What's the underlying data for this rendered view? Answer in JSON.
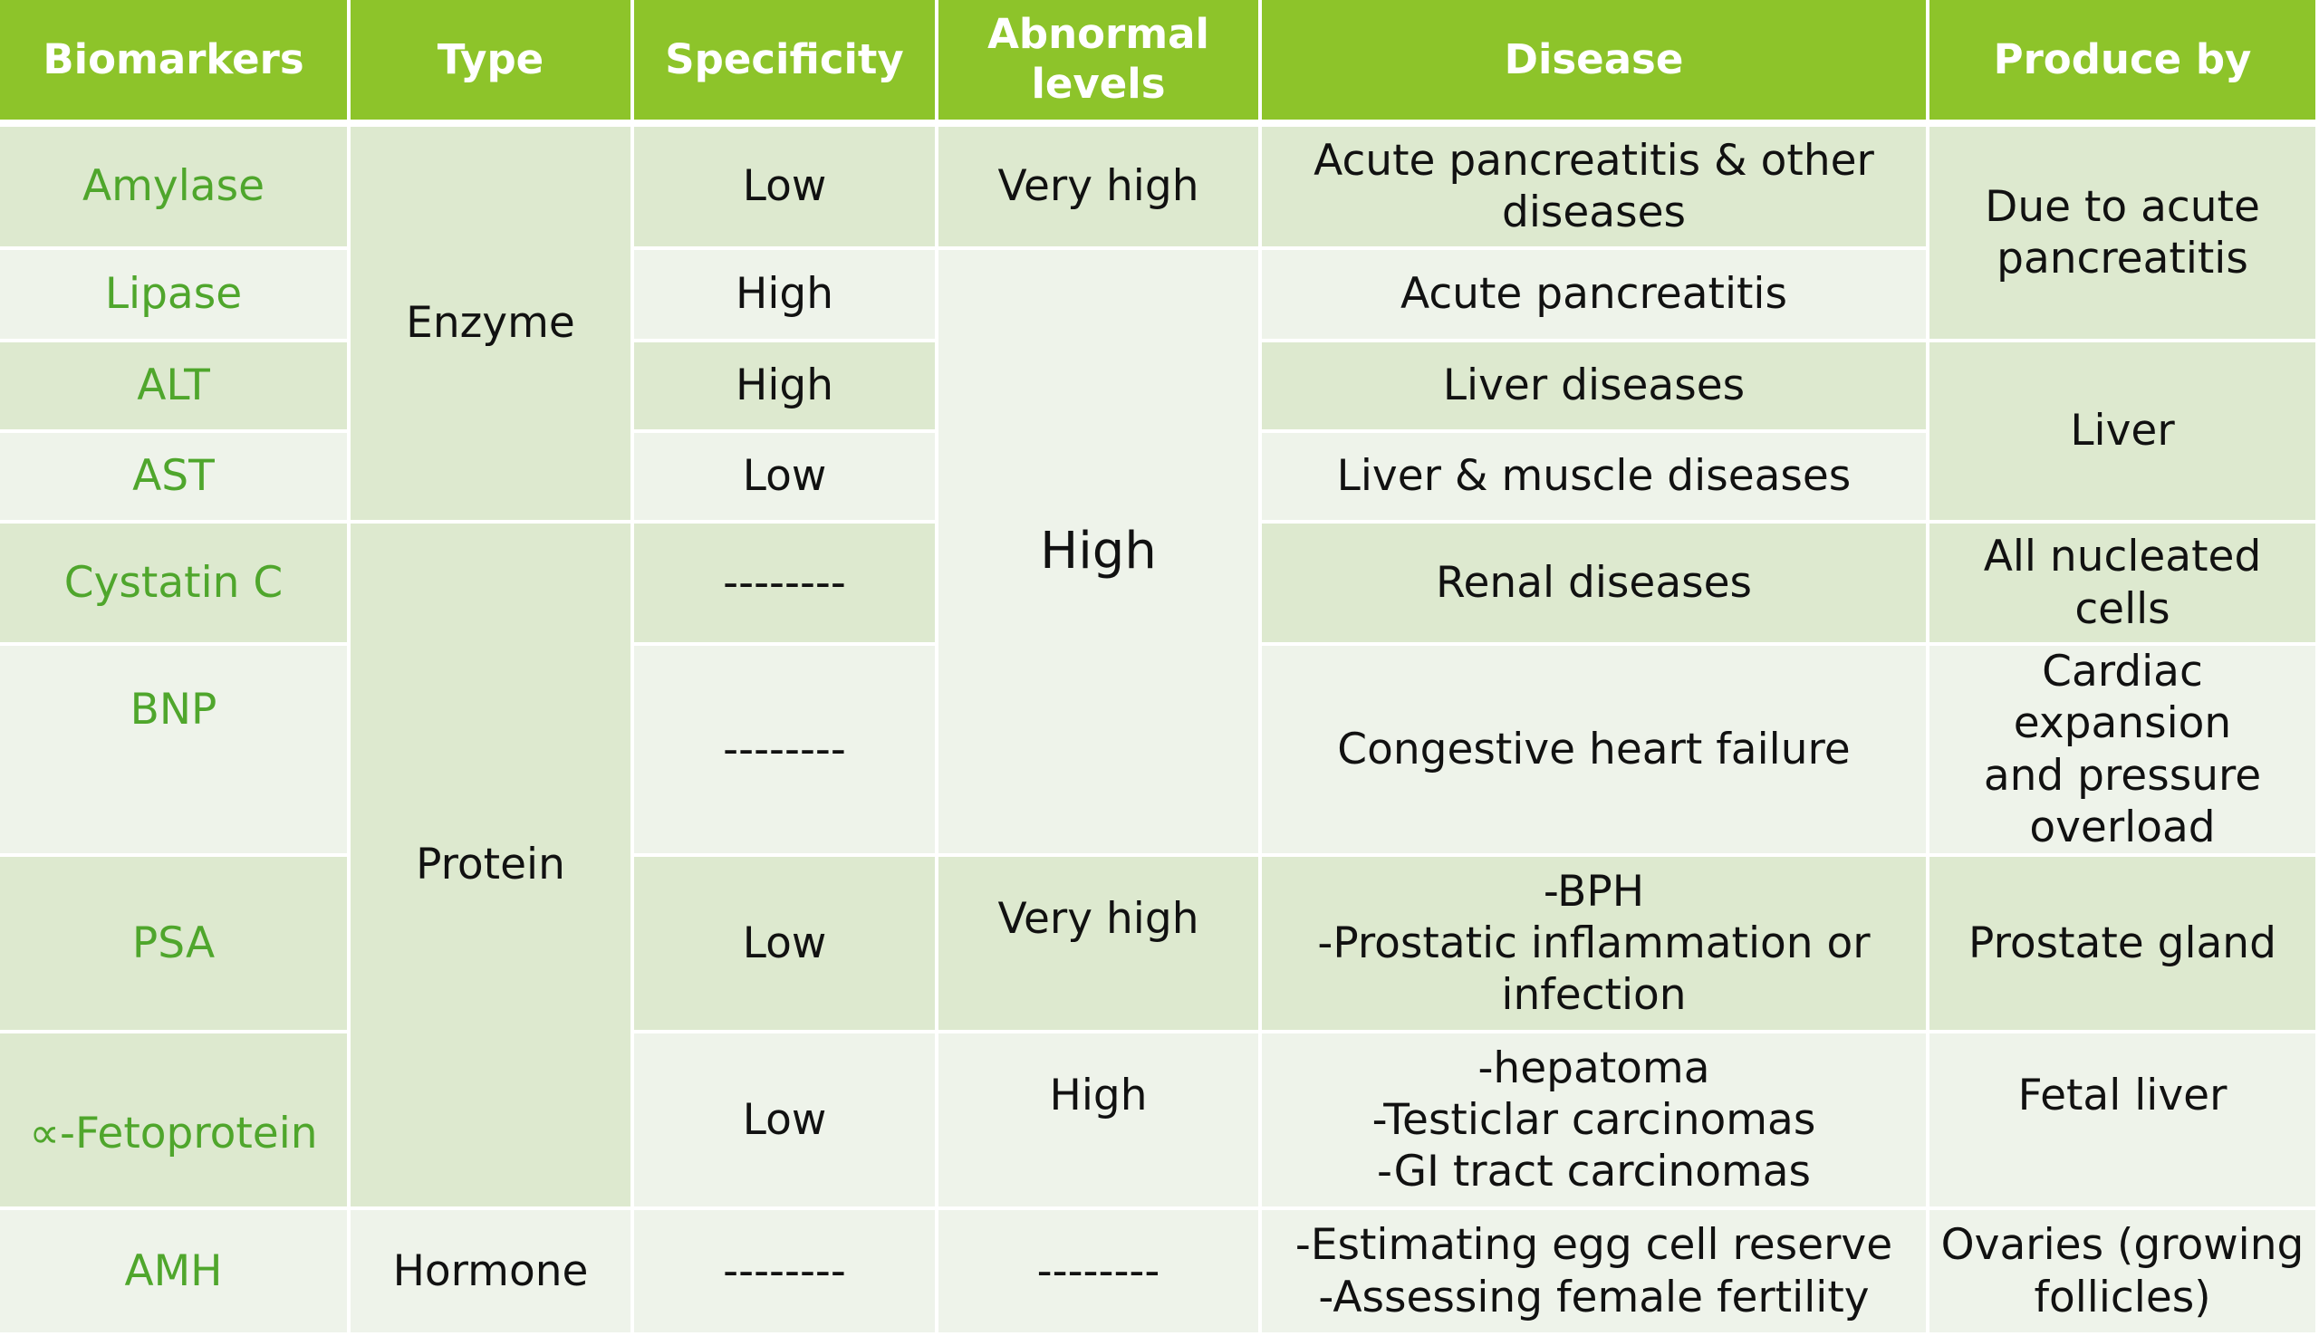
{
  "table": {
    "headers": [
      "Biomarkers",
      "Type",
      "Specificity",
      "Abnormal levels",
      "Disease",
      "Produce by"
    ],
    "header_line2": "levels",
    "header_abnormal_line1": "Abnormal",
    "rows": [
      {
        "biomarker": "Amylase",
        "specificity": "Low",
        "abnormal": "Very high",
        "disease": [
          "Acute pancreatitis & other",
          "diseases"
        ]
      },
      {
        "biomarker": "Lipase",
        "specificity": "High",
        "disease": [
          "Acute pancreatitis"
        ]
      },
      {
        "biomarker": "ALT",
        "specificity": "High",
        "disease": [
          "Liver diseases"
        ]
      },
      {
        "biomarker": "AST",
        "specificity": "Low",
        "disease": [
          "Liver & muscle diseases"
        ]
      },
      {
        "biomarker": "Cystatin C",
        "specificity": "--------",
        "disease": [
          "Renal diseases"
        ]
      },
      {
        "biomarker": "BNP",
        "specificity": "--------",
        "disease": [
          "Congestive heart failure"
        ]
      },
      {
        "biomarker": "PSA",
        "specificity": "Low",
        "abnormal": "Very high",
        "disease": [
          "-BPH",
          "-Prostatic inflammation or",
          "infection"
        ]
      },
      {
        "biomarker": "∝-Fetoprotein",
        "specificity": "Low",
        "abnormal": "High",
        "disease": [
          "-hepatoma",
          "-Testiclar carcinomas",
          "-GI tract carcinomas"
        ]
      },
      {
        "biomarker": "AMH",
        "specificity": "--------",
        "abnormal": "--------",
        "disease": [
          "-Estimating egg cell reserve",
          "-Assessing female fertility"
        ]
      }
    ],
    "types": {
      "enzyme": "Enzyme",
      "protein": "Protein",
      "hormone": "Hormone"
    },
    "abnormal_merged": "High",
    "produce_by": {
      "pancreas": [
        "Due to acute",
        "pancreatitis"
      ],
      "liver": "Liver",
      "nucleated": [
        "All nucleated",
        "cells"
      ],
      "cardiac": [
        "Cardiac expansion",
        "and pressure",
        "overload"
      ],
      "prostate": "Prostate gland",
      "fetal": "Fetal liver",
      "ovaries": [
        "Ovaries (growing",
        "follicles)"
      ]
    }
  }
}
